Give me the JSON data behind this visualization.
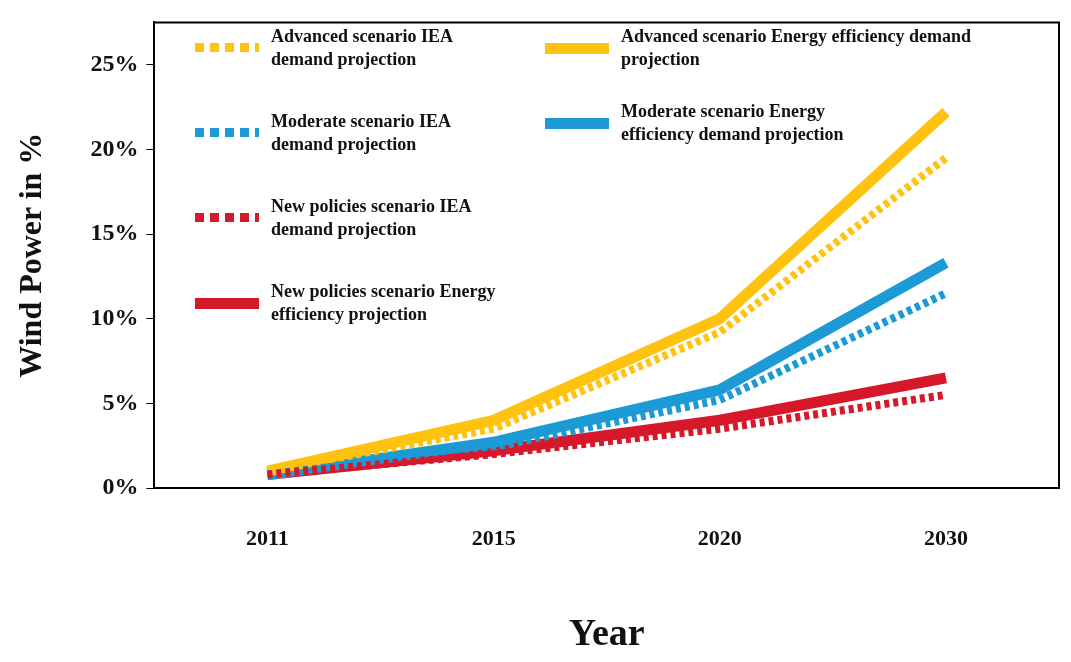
{
  "chart_data": {
    "type": "line",
    "xlabel": "Year",
    "ylabel": "Wind Power in %",
    "categories": [
      "2011",
      "2015",
      "2020",
      "2030"
    ],
    "ylim": [
      0,
      27.5
    ],
    "yticks": [
      {
        "value": 0,
        "label": "0%"
      },
      {
        "value": 5,
        "label": "5%"
      },
      {
        "value": 10,
        "label": "10%"
      },
      {
        "value": 15,
        "label": "15%"
      },
      {
        "value": 20,
        "label": "20%"
      },
      {
        "value": 25,
        "label": "25%"
      }
    ],
    "grid": false,
    "legend": "top left",
    "marker": "none",
    "series": [
      {
        "name": "Advanced scenario IEA demand projection",
        "color": "#ffc20e",
        "line_style": "dotted",
        "values": [
          1.0,
          3.5,
          9.2,
          19.5
        ]
      },
      {
        "name": "Advanced scenario Energy efficiency demand projection",
        "color": "#ffc20e",
        "line_style": "solid",
        "values": [
          1.0,
          4.0,
          10.0,
          22.2
        ]
      },
      {
        "name": "Moderate scenario IEA demand projection",
        "color": "#1c9ad6",
        "line_style": "dotted",
        "values": [
          0.8,
          2.4,
          5.2,
          11.5
        ]
      },
      {
        "name": "Moderate scenario Energy efficiency demand projection",
        "color": "#1c9ad6",
        "line_style": "solid",
        "values": [
          0.8,
          2.7,
          5.8,
          13.3
        ]
      },
      {
        "name": "New policies scenario IEA demand projection",
        "color": "#d7182a",
        "line_style": "dotted",
        "values": [
          0.8,
          2.0,
          3.5,
          5.5
        ]
      },
      {
        "name": "New policies scenario Energy efficiency projection",
        "color": "#d7182a",
        "line_style": "solid",
        "values": [
          0.8,
          2.2,
          4.0,
          6.5
        ]
      }
    ]
  }
}
